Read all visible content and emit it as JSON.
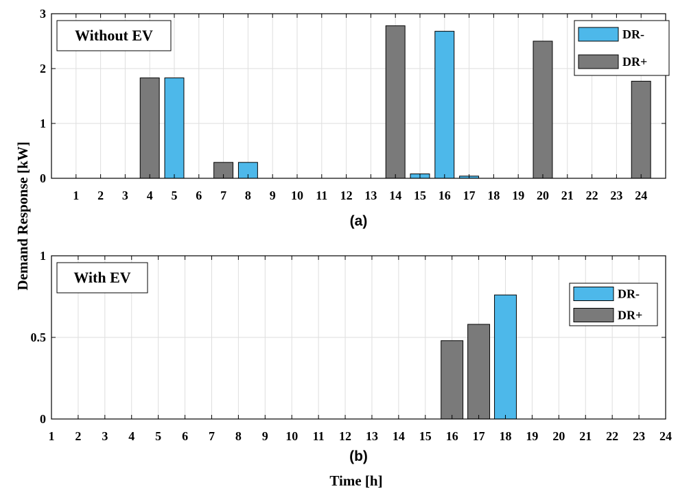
{
  "figure": {
    "ylabel": "Demand Response [kW]",
    "xlabel": "Time [h]"
  },
  "colors": {
    "dr_minus": "#4db8ea",
    "dr_plus": "#7a7a7a",
    "grid": "#dedede"
  },
  "chart_data": [
    {
      "type": "bar",
      "panel_label": "(a)",
      "title_box": "Without EV",
      "categories": [
        "1",
        "2",
        "3",
        "4",
        "5",
        "6",
        "7",
        "8",
        "9",
        "10",
        "11",
        "12",
        "13",
        "14",
        "15",
        "16",
        "17",
        "18",
        "19",
        "20",
        "21",
        "22",
        "23",
        "24"
      ],
      "ylim": [
        0,
        3
      ],
      "yticks": [
        0,
        1,
        2,
        3
      ],
      "grid": true,
      "legend_position": "top-right",
      "series": [
        {
          "name": "DR-",
          "color": "#4db8ea",
          "values": [
            0,
            0,
            0,
            0,
            1.83,
            0,
            0,
            0.29,
            0,
            0,
            0,
            0,
            0,
            0,
            0.08,
            2.68,
            0.04,
            0,
            0,
            0,
            0,
            0,
            0,
            0
          ]
        },
        {
          "name": "DR+",
          "color": "#7a7a7a",
          "values": [
            0,
            0,
            0,
            1.83,
            0,
            0,
            0.29,
            0,
            0,
            0,
            0,
            0,
            0,
            2.78,
            0,
            0,
            0,
            0,
            0,
            2.5,
            0,
            0,
            0,
            1.77
          ]
        }
      ]
    },
    {
      "type": "bar",
      "panel_label": "(b)",
      "title_box": "With EV",
      "categories": [
        "1",
        "2",
        "3",
        "4",
        "5",
        "6",
        "7",
        "8",
        "9",
        "10",
        "11",
        "12",
        "13",
        "14",
        "15",
        "16",
        "17",
        "18",
        "19",
        "20",
        "21",
        "22",
        "23",
        "24"
      ],
      "ylim": [
        0,
        1
      ],
      "yticks": [
        0,
        0.5,
        1
      ],
      "grid": true,
      "legend_position": "top-right",
      "series": [
        {
          "name": "DR-",
          "color": "#4db8ea",
          "values": [
            0,
            0,
            0,
            0,
            0,
            0,
            0,
            0,
            0,
            0,
            0,
            0,
            0,
            0,
            0,
            0,
            0,
            0.76,
            0,
            0,
            0,
            0,
            0,
            0
          ]
        },
        {
          "name": "DR+",
          "color": "#7a7a7a",
          "values": [
            0,
            0,
            0,
            0,
            0,
            0,
            0,
            0,
            0,
            0,
            0,
            0,
            0,
            0,
            0,
            0.48,
            0.58,
            0,
            0,
            0,
            0,
            0,
            0,
            0
          ]
        }
      ]
    }
  ]
}
